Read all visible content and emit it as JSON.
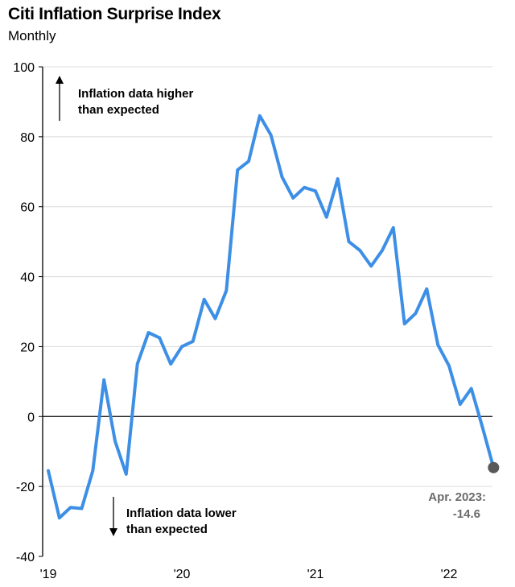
{
  "chart_data": {
    "type": "line",
    "title": "Citi Inflation Surprise Index",
    "subtitle": "Monthly",
    "xlabel": "",
    "ylabel": "",
    "ylim": [
      -40,
      100
    ],
    "yticks": [
      100,
      80,
      60,
      40,
      20,
      0,
      -20,
      -40
    ],
    "xticks": [
      {
        "label": "'19",
        "x": 2019.0
      },
      {
        "label": "'20",
        "x": 2020.0
      },
      {
        "label": "'21",
        "x": 2021.0
      },
      {
        "label": "'22",
        "x": 2022.0
      }
    ],
    "grid": true,
    "series_color": "#3d8fe6",
    "end_marker_color": "#595959",
    "series": [
      {
        "values": [
          -15.5,
          -29,
          -26,
          -26.3,
          -15.5,
          10.5,
          -7,
          -16.5,
          15,
          24,
          22.5,
          15,
          20,
          21.5,
          33.5,
          28,
          36,
          70.5,
          73,
          86,
          80.5,
          68.5,
          62.5,
          65.5,
          64.5,
          57,
          68,
          50,
          47.5,
          43,
          47.5,
          54,
          26.5,
          29.5,
          36.5,
          20.5,
          14.5,
          3.5,
          8,
          -3,
          -14.6
        ]
      }
    ],
    "annotations": {
      "up_line1": "Inflation data higher",
      "up_line2": "than expected",
      "down_line1": "Inflation data lower",
      "down_line2": "than expected",
      "end_line1": "Apr. 2023:",
      "end_line2": "-14.6"
    }
  }
}
